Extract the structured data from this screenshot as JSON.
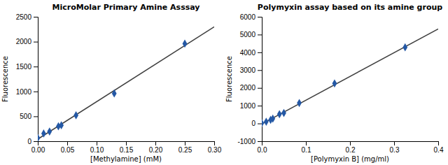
{
  "chart_data": [
    {
      "type": "scatter",
      "title": "MicroMolar Primary Amine Asssay",
      "xlabel": "[Methylamine] (mM)",
      "ylabel": "Fluorescence",
      "series": [
        {
          "type": "scatter",
          "marker": "diamond",
          "color": "#2458A5",
          "x": [
            0.0,
            0.01,
            0.02,
            0.035,
            0.04,
            0.065,
            0.13,
            0.25
          ],
          "values": [
            65,
            155,
            195,
            300,
            320,
            520,
            960,
            1960
          ]
        },
        {
          "type": "line",
          "color": "#404040",
          "x": [
            0,
            0.3
          ],
          "values": [
            42.12,
            2299.22
          ]
        }
      ],
      "xlim": [
        0,
        0.3
      ],
      "ylim": [
        0,
        2500
      ],
      "xticks": [
        {
          "value": 0,
          "label": "0.00"
        },
        {
          "value": 0.05,
          "label": "0.05"
        },
        {
          "value": 0.1,
          "label": "0.10"
        },
        {
          "value": 0.15,
          "label": "0.15"
        },
        {
          "value": 0.2,
          "label": "0.20"
        },
        {
          "value": 0.25,
          "label": "0.25"
        },
        {
          "value": 0.3,
          "label": "0.30"
        }
      ],
      "yticks": [
        0,
        500,
        1000,
        1500,
        2000,
        2500
      ]
    },
    {
      "type": "scatter",
      "title": "Polymyxin assay based on its amine group",
      "xlabel": "[Polymyxin B] (mg/ml)",
      "ylabel": "Fluorescence",
      "series": [
        {
          "type": "scatter",
          "marker": "diamond",
          "color": "#2458A5",
          "x": [
            0.0,
            0.01,
            0.02,
            0.025,
            0.04,
            0.05,
            0.085,
            0.165,
            0.325
          ],
          "values": [
            20,
            100,
            200,
            270,
            520,
            590,
            1150,
            2250,
            4280
          ]
        },
        {
          "type": "line",
          "color": "#404040",
          "x": [
            0,
            0.4
          ],
          "values": [
            -26.56,
            5317.34
          ]
        }
      ],
      "xlim": [
        0,
        0.4
      ],
      "ylim": [
        -1000,
        6000
      ],
      "xticks": [
        {
          "value": 0,
          "label": "0.0"
        },
        {
          "value": 0.1,
          "label": "0.1"
        },
        {
          "value": 0.2,
          "label": "0.2"
        },
        {
          "value": 0.3,
          "label": "0.3"
        },
        {
          "value": 0.4,
          "label": "0.4"
        }
      ],
      "yticks": [
        -1000,
        0,
        1000,
        2000,
        3000,
        4000,
        5000,
        6000
      ]
    }
  ]
}
